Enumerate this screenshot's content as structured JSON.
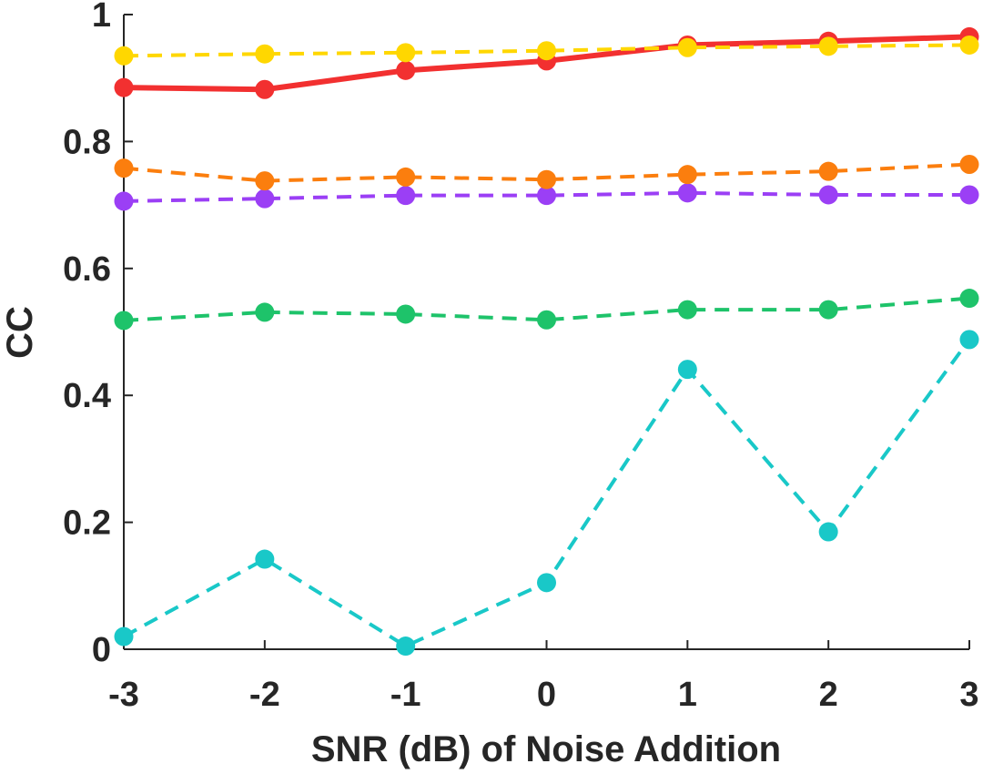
{
  "chart_data": {
    "type": "line",
    "title": "",
    "xlabel": "SNR (dB) of Noise Addition",
    "ylabel": "CC",
    "x": [
      -3,
      -2,
      -1,
      0,
      1,
      2,
      3
    ],
    "xticks": [
      "-3",
      "-2",
      "-1",
      "0",
      "1",
      "2",
      "3"
    ],
    "yticks": [
      "0",
      "0.2",
      "0.4",
      "0.6",
      "0.8",
      "1"
    ],
    "xlim": [
      -3,
      3
    ],
    "ylim": [
      0,
      1
    ],
    "grid": false,
    "legend": "none",
    "series": [
      {
        "name": "yellow",
        "color": "#ffd700",
        "dash": true,
        "values": [
          0.935,
          0.938,
          0.94,
          0.943,
          0.948,
          0.95,
          0.952
        ]
      },
      {
        "name": "red",
        "color": "#f23030",
        "dash": false,
        "values": [
          0.885,
          0.882,
          0.912,
          0.927,
          0.952,
          0.958,
          0.965
        ]
      },
      {
        "name": "orange",
        "color": "#fb7e0e",
        "dash": true,
        "values": [
          0.758,
          0.738,
          0.744,
          0.74,
          0.748,
          0.753,
          0.764
        ]
      },
      {
        "name": "purple",
        "color": "#9b3ff5",
        "dash": true,
        "values": [
          0.706,
          0.71,
          0.715,
          0.715,
          0.719,
          0.716,
          0.716
        ]
      },
      {
        "name": "green",
        "color": "#1ec36a",
        "dash": true,
        "values": [
          0.518,
          0.531,
          0.528,
          0.519,
          0.535,
          0.535,
          0.553
        ]
      },
      {
        "name": "cyan",
        "color": "#19c8c8",
        "dash": true,
        "values": [
          0.02,
          0.142,
          0.005,
          0.105,
          0.441,
          0.185,
          0.488
        ]
      }
    ]
  }
}
